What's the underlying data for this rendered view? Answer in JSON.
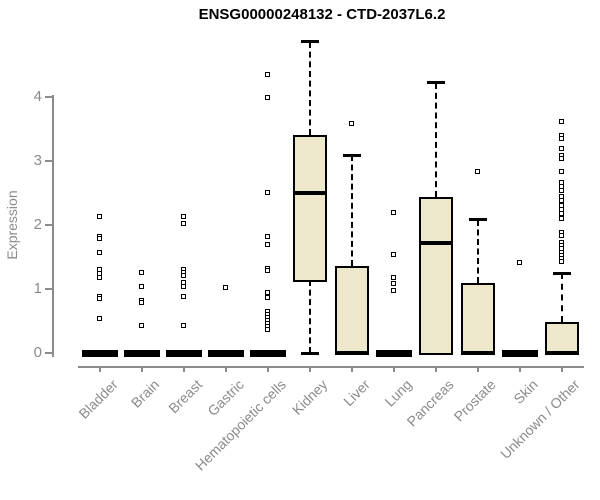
{
  "chart_data": {
    "type": "boxplot",
    "title": "ENSG00000248132 - CTD-2037L6.2",
    "ylabel": "Expression",
    "xlabel": "",
    "yticks": [
      0,
      1,
      2,
      3,
      4
    ],
    "ylim": [
      0,
      5.1
    ],
    "grid": false,
    "legend": "none",
    "box_fill_color": "#ede8cc",
    "box_line_color": "#000000",
    "axis_color": "#8b8b8b",
    "categories": [
      "Bladder",
      "Brain",
      "Breast",
      "Gastric",
      "Hematopoietic cells",
      "Kidney",
      "Liver",
      "Lung",
      "Pancreas",
      "Prostate",
      "Skin",
      "Unknown / Other"
    ],
    "boxes": [
      {
        "category": "Bladder",
        "slug": "bladder",
        "q1": 0,
        "median": 0,
        "q3": 0,
        "whisker_low": 0,
        "whisker_high": 0,
        "outliers": [
          2.13,
          1.81,
          1.78,
          1.56,
          1.3,
          1.23,
          1.17,
          0.88,
          0.84,
          0.53
        ]
      },
      {
        "category": "Brain",
        "slug": "brain",
        "q1": 0,
        "median": 0,
        "q3": 0,
        "whisker_low": 0,
        "whisker_high": 0,
        "outliers": [
          1.25,
          1.03,
          0.81,
          0.78,
          0.42
        ]
      },
      {
        "category": "Breast",
        "slug": "breast",
        "q1": 0,
        "median": 0,
        "q3": 0,
        "whisker_low": 0,
        "whisker_high": 0,
        "outliers": [
          2.13,
          2.02,
          1.3,
          1.25,
          1.2,
          1.09,
          1.03,
          0.88,
          0.42
        ]
      },
      {
        "category": "Gastric",
        "slug": "gastric",
        "q1": 0,
        "median": 0,
        "q3": 0,
        "whisker_low": 0,
        "whisker_high": 0,
        "outliers": [
          1.02
        ]
      },
      {
        "category": "Hematopoietic cells",
        "slug": "hematopoietic-cells",
        "q1": 0,
        "median": 0,
        "q3": 0,
        "whisker_low": 0,
        "whisker_high": 0,
        "outliers": [
          4.34,
          3.98,
          2.5,
          1.81,
          1.69,
          1.31,
          1.28,
          0.94,
          0.86,
          0.64,
          0.59,
          0.55,
          0.5,
          0.45,
          0.41,
          0.36
        ]
      },
      {
        "category": "Kidney",
        "slug": "kidney",
        "q1": 1.14,
        "median": 2.5,
        "q3": 3.41,
        "whisker_low": 0,
        "whisker_high": 4.86,
        "outliers": []
      },
      {
        "category": "Liver",
        "slug": "liver",
        "q1": 0,
        "median": 0,
        "q3": 1.36,
        "whisker_low": 0,
        "whisker_high": 3.09,
        "outliers": [
          3.58
        ]
      },
      {
        "category": "Lung",
        "slug": "lung",
        "q1": 0,
        "median": 0,
        "q3": 0,
        "whisker_low": 0,
        "whisker_high": 0,
        "outliers": [
          2.19,
          1.53,
          1.17,
          1.08,
          0.97
        ]
      },
      {
        "category": "Pancreas",
        "slug": "pancreas",
        "q1": 0,
        "median": 1.72,
        "q3": 2.44,
        "whisker_low": 0,
        "whisker_high": 4.22,
        "outliers": []
      },
      {
        "category": "Prostate",
        "slug": "prostate",
        "q1": 0,
        "median": 0,
        "q3": 1.09,
        "whisker_low": 0,
        "whisker_high": 2.08,
        "outliers": [
          2.83
        ]
      },
      {
        "category": "Skin",
        "slug": "skin",
        "q1": 0,
        "median": 0,
        "q3": 0,
        "whisker_low": 0,
        "whisker_high": 0,
        "outliers": [
          1.41
        ]
      },
      {
        "category": "Unknown / Other",
        "slug": "unknown-other",
        "q1": 0,
        "median": 0,
        "q3": 0.48,
        "whisker_low": 0,
        "whisker_high": 1.25,
        "outliers": [
          3.61,
          3.39,
          3.34,
          3.19,
          3.08,
          3.03,
          2.83,
          2.66,
          2.59,
          2.53,
          2.44,
          2.37,
          2.3,
          2.23,
          2.17,
          2.1,
          1.88,
          1.83,
          1.72,
          1.67,
          1.62,
          1.57,
          1.52,
          1.47,
          1.42
        ]
      }
    ]
  }
}
